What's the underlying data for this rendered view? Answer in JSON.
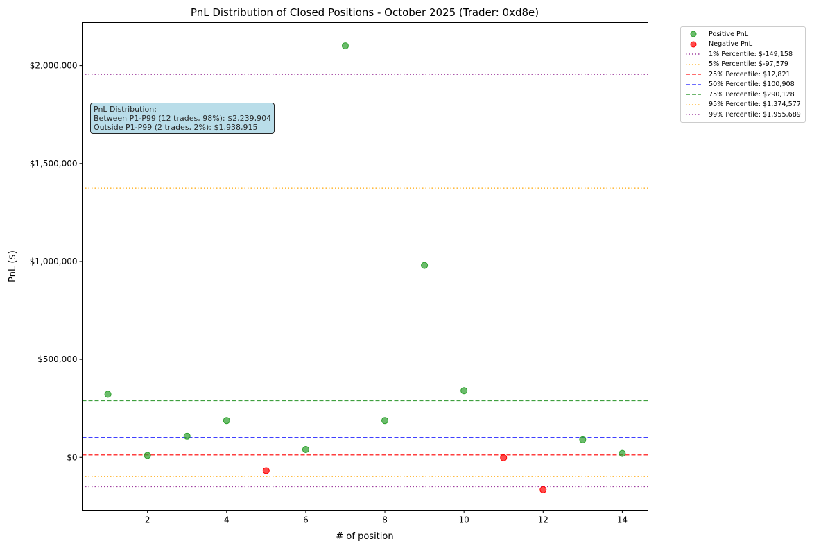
{
  "chart_data": {
    "type": "scatter",
    "title": "PnL Distribution of Closed Positions - October 2025 (Trader: 0xd8e)",
    "xlabel": "# of position",
    "ylabel": "PnL ($)",
    "xlim": [
      0.35,
      14.65
    ],
    "ylim": [
      -270000,
      2220000
    ],
    "x_ticks": [
      2,
      4,
      6,
      8,
      10,
      12,
      14
    ],
    "x_tick_labels": [
      "2",
      "4",
      "6",
      "8",
      "10",
      "12",
      "14"
    ],
    "y_ticks": [
      0,
      500000,
      1000000,
      1500000,
      2000000
    ],
    "y_tick_labels": [
      "$0",
      "$500,000",
      "$1,000,000",
      "$1,500,000",
      "$2,000,000"
    ],
    "grid": false,
    "legend_position": "outside-top-right",
    "series": [
      {
        "name": "Positive PnL",
        "color": "#2ca02c",
        "x": [
          1,
          2,
          3,
          4,
          6,
          7,
          8,
          9,
          10,
          13,
          14
        ],
        "y": [
          322000,
          10000,
          108000,
          188000,
          40000,
          2101000,
          188000,
          980000,
          340000,
          90000,
          20000
        ]
      },
      {
        "name": "Negative PnL",
        "color": "#ff0000",
        "x": [
          5,
          11,
          12
        ],
        "y": [
          -68000,
          -2000,
          -165000
        ]
      }
    ],
    "reference_lines": [
      {
        "label": "1% Percentile: $-149,158",
        "value": -149158,
        "color": "#800080",
        "style": "dotted"
      },
      {
        "label": "5% Percentile: $-97,579",
        "value": -97579,
        "color": "#ffa500",
        "style": "dotted"
      },
      {
        "label": "25% Percentile: $12,821",
        "value": 12821,
        "color": "#ff0000",
        "style": "dashed"
      },
      {
        "label": "50% Percentile: $100,908",
        "value": 100908,
        "color": "#0000ff",
        "style": "dashed"
      },
      {
        "label": "75% Percentile: $290,128",
        "value": 290128,
        "color": "#008000",
        "style": "dashed"
      },
      {
        "label": "95% Percentile: $1,374,577",
        "value": 1374577,
        "color": "#ffa500",
        "style": "dotted"
      },
      {
        "label": "99% Percentile: $1,955,689",
        "value": 1955689,
        "color": "#800080",
        "style": "dotted"
      }
    ],
    "annotation": {
      "line1": "PnL Distribution:",
      "line2": "Between P1-P99 (12 trades, 98%): $2,239,904",
      "line3": "Outside P1-P99 (2 trades, 2%): $1,938,915"
    }
  }
}
